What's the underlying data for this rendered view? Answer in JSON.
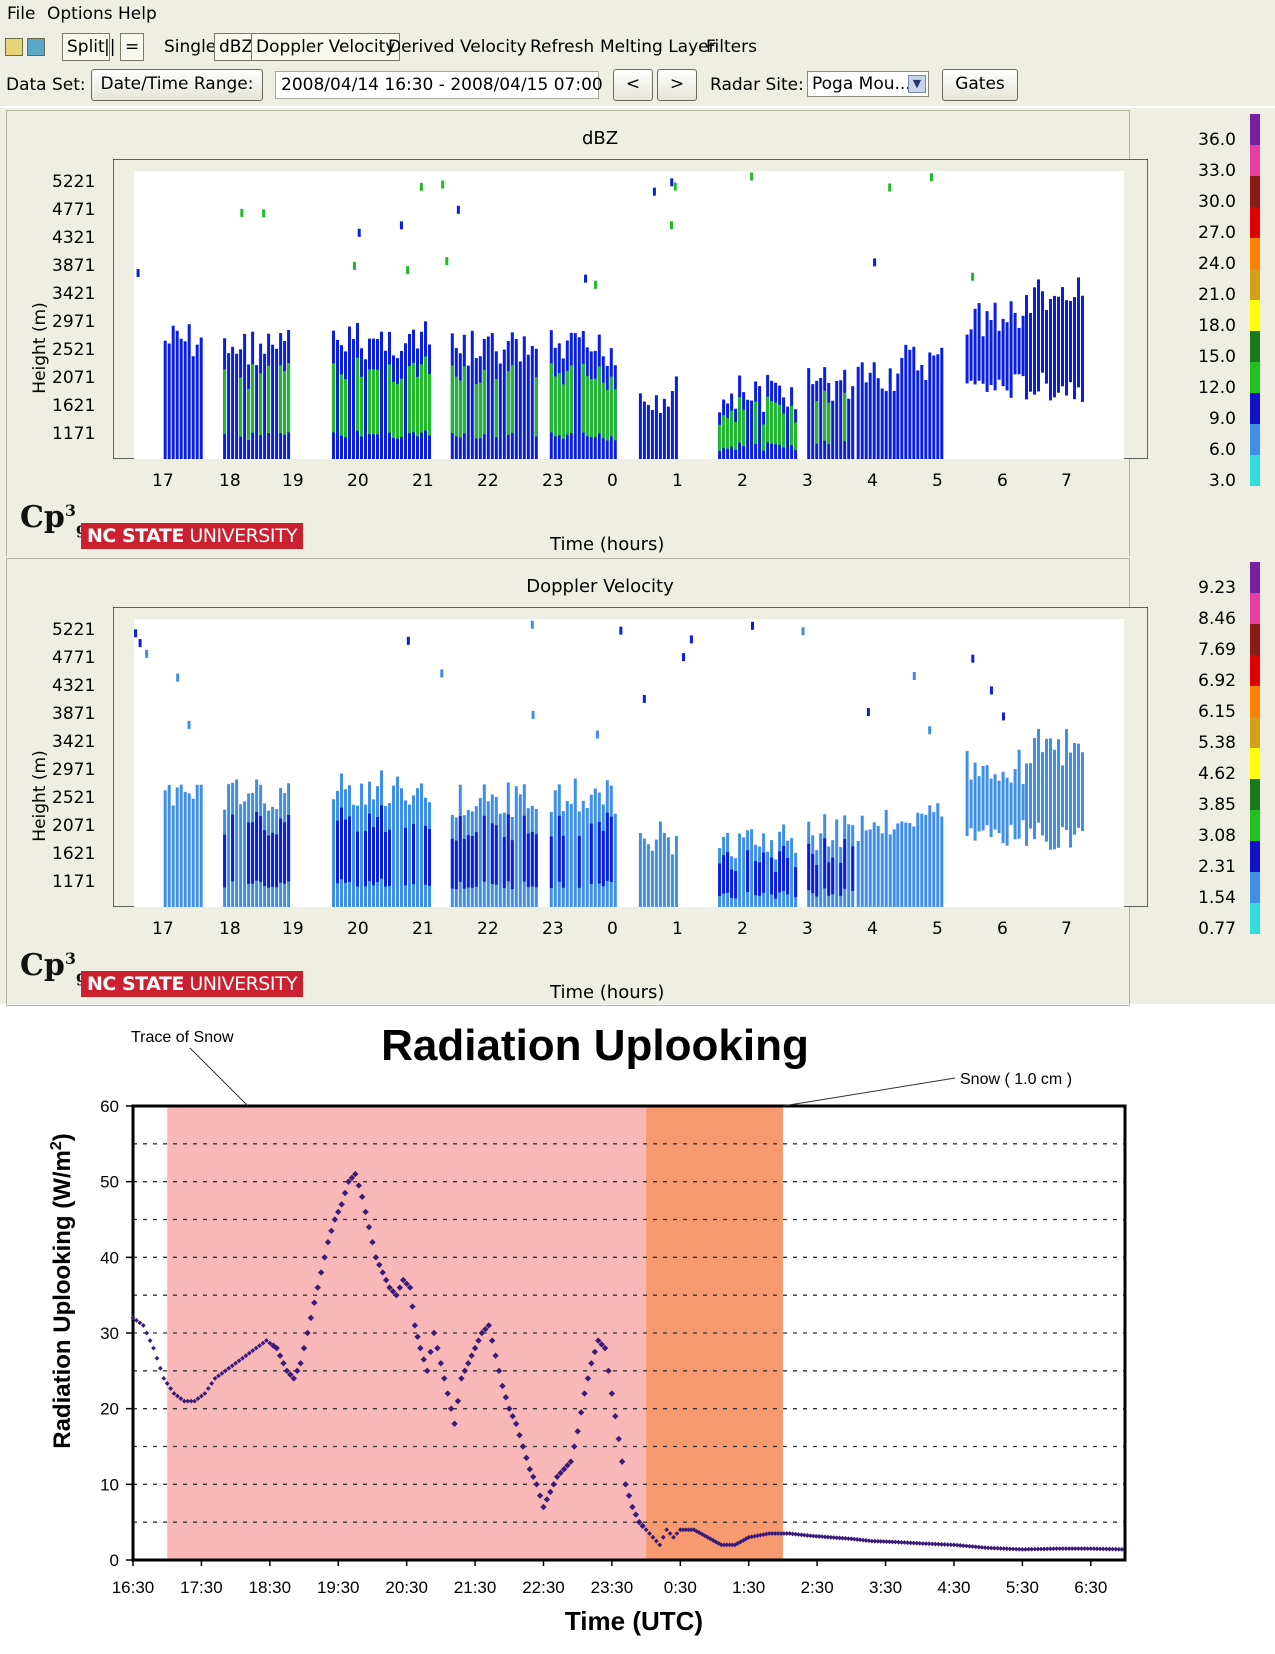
{
  "menubar": {
    "items": [
      "File",
      "Options",
      "Help"
    ]
  },
  "toolbar": {
    "split_label": "Split",
    "vertical_split_label": "||",
    "horizontal_split_label": "=",
    "single_label": "Single",
    "dbz_label": "dBZ",
    "doppler_label": "Doppler Velocity",
    "derived_label": "Derived Velocity",
    "refresh_label": "Refresh",
    "melting_label": "Melting Layer",
    "filters_label": "Filters"
  },
  "dataset": {
    "label": "Data Set:",
    "datetime_button": "Date/Time Range:",
    "range_value": "2008/04/14 16:30 - 2008/04/15 07:00",
    "prev_label": "<",
    "next_label": ">",
    "radar_label": "Radar Site:",
    "radar_value": "Poga Mou...",
    "gates_label": "Gates"
  },
  "panels": [
    {
      "title": "dBZ",
      "ylabel": "Height (m)",
      "xlabel": "Time (hours)",
      "y_ticks": [
        "5221",
        "4771",
        "4321",
        "3871",
        "3421",
        "2971",
        "2521",
        "2071",
        "1621",
        "1171"
      ],
      "x_ticks": [
        "17",
        "18",
        "19",
        "20",
        "21",
        "22",
        "23",
        "0",
        "1",
        "2",
        "3",
        "4",
        "5",
        "6",
        "7"
      ],
      "colorbar_labels": [
        "36.0",
        "33.0",
        "30.0",
        "27.0",
        "24.0",
        "21.0",
        "18.0",
        "15.0",
        "12.0",
        "9.0",
        "6.0",
        "3.0"
      ],
      "logo_text": "Cp",
      "logo_sup": "3",
      "logo_sub": "g",
      "ncsu_bold": "NC STATE",
      "ncsu_light": " UNIVERSITY"
    },
    {
      "title": "Doppler Velocity",
      "ylabel": "Height (m)",
      "xlabel": "Time (hours)",
      "y_ticks": [
        "5221",
        "4771",
        "4321",
        "3871",
        "3421",
        "2971",
        "2521",
        "2071",
        "1621",
        "1171"
      ],
      "x_ticks": [
        "17",
        "18",
        "19",
        "20",
        "21",
        "22",
        "23",
        "0",
        "1",
        "2",
        "3",
        "4",
        "5",
        "6",
        "7"
      ],
      "colorbar_labels": [
        "9.23",
        "8.46",
        "7.69",
        "6.92",
        "6.15",
        "5.38",
        "4.62",
        "3.85",
        "3.08",
        "2.31",
        "1.54",
        "0.77"
      ],
      "logo_text": "Cp",
      "logo_sup": "3",
      "logo_sub": "g",
      "ncsu_bold": "NC STATE",
      "ncsu_light": " UNIVERSITY"
    }
  ],
  "colorbar_colors": [
    "#7b1fa2",
    "#e83ea4",
    "#8b1a1a",
    "#e00000",
    "#ff7f00",
    "#d4a017",
    "#ffff00",
    "#1a7a1a",
    "#22c01e",
    "#1111cc",
    "#3f8fe8",
    "#33dcdc"
  ],
  "radar_echo_colors": {
    "dbz_primary": "#0a1ee0",
    "dbz_core": "#22b82a",
    "velocity_primary": "#3f8fe8",
    "velocity_secondary": "#0a1ee0"
  },
  "chart_data": {
    "type": "scatter",
    "title": "Radiation Uplooking",
    "xlabel": "Time (UTC)",
    "ylabel": "Radiation Uplooking (W/m²)",
    "ylabel_main": "Radiation Uplooking (W/m",
    "ylabel_sup": "2",
    "ylabel_end": ")",
    "x_ticks": [
      "16:30",
      "17:30",
      "18:30",
      "19:30",
      "20:30",
      "21:30",
      "22:30",
      "23:30",
      "0:30",
      "1:30",
      "2:30",
      "3:30",
      "4:30",
      "5:30",
      "6:30"
    ],
    "y_ticks": [
      0,
      10,
      20,
      30,
      40,
      50,
      60
    ],
    "ylim": [
      0,
      60
    ],
    "xlim_hours_since_1630": [
      0,
      14.5
    ],
    "gridlines": "horizontal dashed every 5",
    "annotations": [
      {
        "text": "Trace of Snow",
        "span": [
          "17:00",
          "00:00"
        ],
        "color": "#f9b8b8"
      },
      {
        "text": "Snow ( 1.0 cm )",
        "span": [
          "00:00",
          "02:00"
        ],
        "color": "#f89a70"
      }
    ],
    "series": [
      {
        "color": "#3a1a7a",
        "points": [
          [
            0.0,
            32
          ],
          [
            0.15,
            31
          ],
          [
            0.3,
            28
          ],
          [
            0.45,
            24
          ],
          [
            0.6,
            22
          ],
          [
            0.75,
            21
          ],
          [
            0.9,
            21
          ],
          [
            1.05,
            22
          ],
          [
            1.2,
            24
          ],
          [
            1.35,
            25
          ],
          [
            1.5,
            26
          ],
          [
            1.65,
            27
          ],
          [
            1.8,
            28
          ],
          [
            1.95,
            29
          ],
          [
            2.1,
            28
          ],
          [
            2.25,
            25
          ],
          [
            2.35,
            24
          ],
          [
            2.45,
            26
          ],
          [
            2.55,
            30
          ],
          [
            2.65,
            34
          ],
          [
            2.75,
            38
          ],
          [
            2.85,
            42
          ],
          [
            2.95,
            45
          ],
          [
            3.05,
            47
          ],
          [
            3.15,
            50
          ],
          [
            3.25,
            51
          ],
          [
            3.35,
            48
          ],
          [
            3.45,
            44
          ],
          [
            3.55,
            40
          ],
          [
            3.65,
            38
          ],
          [
            3.75,
            36
          ],
          [
            3.85,
            35
          ],
          [
            3.95,
            37
          ],
          [
            4.05,
            36
          ],
          [
            4.12,
            31
          ],
          [
            4.2,
            28
          ],
          [
            4.3,
            25
          ],
          [
            4.4,
            30
          ],
          [
            4.5,
            26
          ],
          [
            4.6,
            22
          ],
          [
            4.7,
            18
          ],
          [
            4.8,
            24
          ],
          [
            4.9,
            26
          ],
          [
            5.0,
            28
          ],
          [
            5.1,
            30
          ],
          [
            5.2,
            31
          ],
          [
            5.3,
            27
          ],
          [
            5.4,
            23
          ],
          [
            5.5,
            20
          ],
          [
            5.6,
            18
          ],
          [
            5.7,
            15
          ],
          [
            5.8,
            12
          ],
          [
            5.9,
            10
          ],
          [
            6.0,
            7
          ],
          [
            6.1,
            9
          ],
          [
            6.2,
            11
          ],
          [
            6.3,
            12
          ],
          [
            6.4,
            13
          ],
          [
            6.5,
            17
          ],
          [
            6.6,
            22
          ],
          [
            6.7,
            26
          ],
          [
            6.8,
            29
          ],
          [
            6.9,
            28
          ],
          [
            7.0,
            22
          ],
          [
            7.1,
            16
          ],
          [
            7.2,
            10
          ],
          [
            7.3,
            7
          ],
          [
            7.4,
            5
          ],
          [
            7.5,
            4
          ],
          [
            7.6,
            3
          ],
          [
            7.7,
            2
          ],
          [
            7.8,
            4
          ],
          [
            7.9,
            3
          ],
          [
            8.0,
            4
          ],
          [
            8.2,
            4
          ],
          [
            8.4,
            3
          ],
          [
            8.6,
            2
          ],
          [
            8.8,
            2
          ],
          [
            9.0,
            3
          ],
          [
            9.3,
            3.5
          ],
          [
            9.6,
            3.5
          ],
          [
            9.9,
            3.2
          ],
          [
            10.2,
            3
          ],
          [
            10.5,
            2.8
          ],
          [
            10.8,
            2.5
          ],
          [
            11.1,
            2.4
          ],
          [
            11.5,
            2.2
          ],
          [
            12.0,
            2
          ],
          [
            12.5,
            1.6
          ],
          [
            13.0,
            1.4
          ],
          [
            13.5,
            1.5
          ],
          [
            14.0,
            1.5
          ],
          [
            14.5,
            1.4
          ]
        ]
      }
    ]
  }
}
